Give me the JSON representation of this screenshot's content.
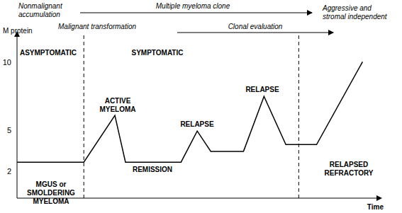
{
  "chart_data": {
    "type": "line",
    "y_label": "M protein",
    "x_label": "Time",
    "x": [
      0,
      20.2,
      29.6,
      32.8,
      49.6,
      54.5,
      58.6,
      68.5,
      74.7,
      81.3,
      90.6,
      104.5
    ],
    "values": [
      2.65,
      2.65,
      6.1,
      2.65,
      2.65,
      4.95,
      3.45,
      3.45,
      7.5,
      3.95,
      3.95,
      10.05
    ],
    "color": "#000000",
    "xlim": [
      0,
      110
    ],
    "ylim": [
      0,
      12
    ],
    "xticks": [],
    "yticks": [
      2,
      5,
      10
    ],
    "tick_labels": "y",
    "grid": false,
    "phase_boundaries": [
      20.2,
      85.2
    ],
    "annotations": [
      [
        "ASYMPTOMATIC"
      ],
      [
        "SYMPTOMATIC"
      ],
      [
        "ACTIVE",
        "MYELOMA"
      ],
      [
        "REMISSION"
      ],
      [
        "RELAPSE"
      ],
      [
        "RELAPSE"
      ],
      [
        "MGUS or",
        "SMOLDERING",
        "MYELOMA"
      ],
      [
        "RELAPSED",
        "REFRACTORY"
      ]
    ],
    "top_labels": [
      [
        "Nonmalignant",
        "accumulation"
      ],
      [
        "Multiple myeloma clone"
      ],
      [
        "Aggressive and",
        "stromal independent"
      ],
      [
        "Malignant transformation"
      ],
      [
        "Clonal evaluation"
      ]
    ]
  }
}
